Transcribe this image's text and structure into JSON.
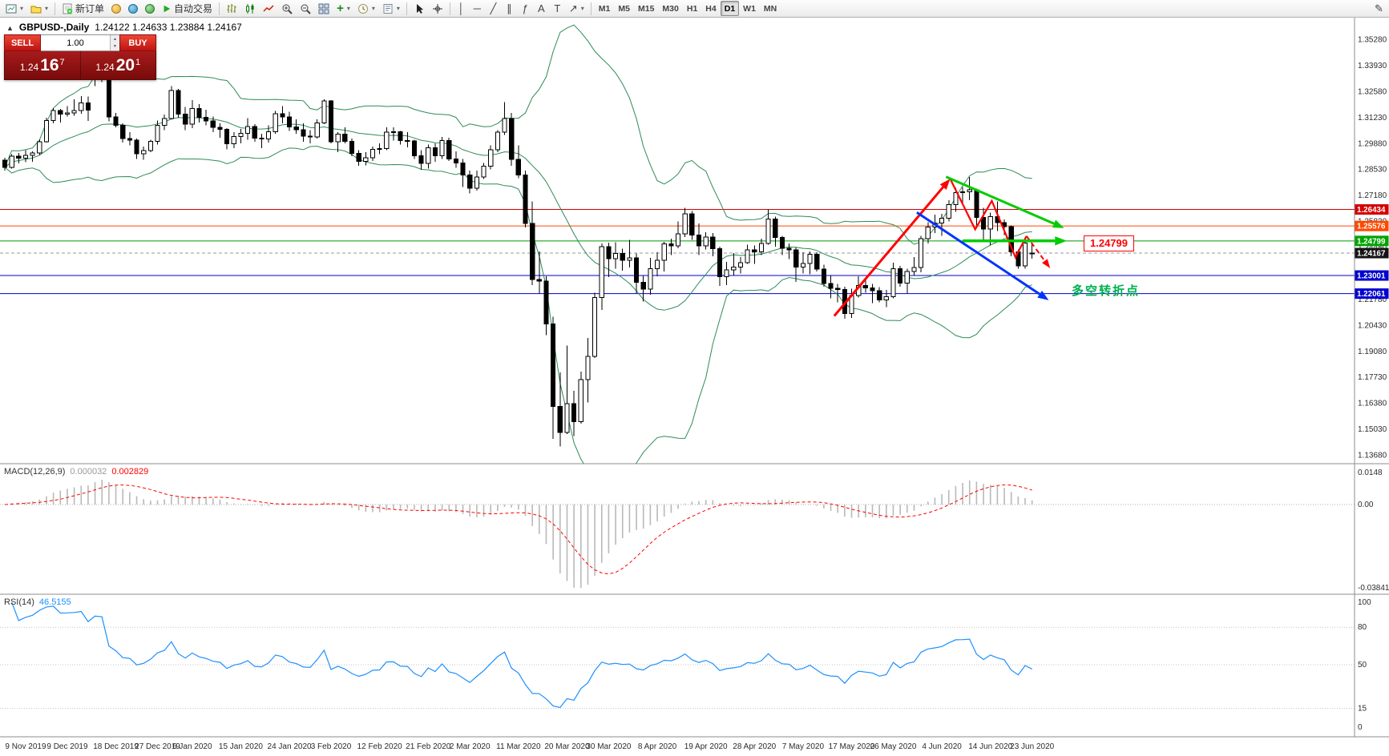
{
  "toolbar": {
    "new_order_label": "新订单",
    "autotrade_label": "自动交易",
    "timeframes": [
      "M1",
      "M5",
      "M15",
      "M30",
      "H1",
      "H4",
      "D1",
      "W1",
      "MN"
    ],
    "active_timeframe": "D1"
  },
  "chart_header": {
    "symbol_period": "GBPUSD-,Daily",
    "ohlc": "1.24122 1.24633 1.23884 1.24167"
  },
  "trade_panel": {
    "sell_label": "SELL",
    "buy_label": "BUY",
    "volume": "1.00",
    "sell_price": {
      "big": "1.24",
      "pips": "16",
      "pt": "7"
    },
    "buy_price": {
      "big": "1.24",
      "pips": "20",
      "pt": "1"
    }
  },
  "annotations": {
    "note_text": "多空转折点",
    "note_color": "#00b050",
    "price_callout": "1.24799",
    "callout_color": "#ff0000"
  },
  "price_scale": {
    "labels": [
      "1.35280",
      "1.33930",
      "1.32580",
      "1.31230",
      "1.29880",
      "1.28530",
      "1.27180",
      "1.25830",
      "1.24480",
      "1.23130",
      "1.21780",
      "1.20430",
      "1.19080",
      "1.17730",
      "1.16380",
      "1.15030",
      "1.13680"
    ],
    "badges": [
      {
        "text": "1.26434",
        "color": "#d40000",
        "price": 1.26434
      },
      {
        "text": "1.25576",
        "color": "#ff4800",
        "price": 1.25576
      },
      {
        "text": "1.24799",
        "color": "#00a400",
        "price": 1.24799
      },
      {
        "text": "1.24167",
        "color": "#141414",
        "price": 1.24167
      },
      {
        "text": "1.23001",
        "color": "#0000d0",
        "price": 1.23001
      },
      {
        "text": "1.22061",
        "color": "#0000d0",
        "price": 1.22061
      }
    ]
  },
  "chart_data": {
    "type": "candlestick",
    "symbol": "GBPUSD-",
    "period": "Daily",
    "ylim": [
      1.1368,
      1.3528
    ],
    "candle_up_color": "#ffffff",
    "candle_down_color": "#000000",
    "candle_border": "#000000",
    "bollinger": {
      "period": 20,
      "deviation": 2,
      "color": "#2e8b57"
    },
    "hlines": [
      {
        "price": 1.26434,
        "color": "#d40000",
        "style": "solid"
      },
      {
        "price": 1.25576,
        "color": "#ff4800",
        "style": "solid"
      },
      {
        "price": 1.24799,
        "color": "#009600",
        "style": "solid"
      },
      {
        "price": 1.24167,
        "color": "#999999",
        "style": "dash"
      },
      {
        "price": 1.23001,
        "color": "#0000d0",
        "style": "solid"
      },
      {
        "price": 1.22061,
        "color": "#0000d0",
        "style": "solid"
      }
    ],
    "date_labels": [
      {
        "i": 3,
        "t": "9 Nov 2019"
      },
      {
        "i": 9,
        "t": "9 Dec 2019"
      },
      {
        "i": 16,
        "t": "18 Dec 2019"
      },
      {
        "i": 22,
        "t": "27 Dec 2019"
      },
      {
        "i": 27,
        "t": "6 Jan 2020"
      },
      {
        "i": 34,
        "t": "15 Jan 2020"
      },
      {
        "i": 41,
        "t": "24 Jan 2020"
      },
      {
        "i": 47,
        "t": "3 Feb 2020"
      },
      {
        "i": 54,
        "t": "12 Feb 2020"
      },
      {
        "i": 61,
        "t": "21 Feb 2020"
      },
      {
        "i": 67,
        "t": "2 Mar 2020"
      },
      {
        "i": 74,
        "t": "11 Mar 2020"
      },
      {
        "i": 81,
        "t": "20 Mar 2020"
      },
      {
        "i": 87,
        "t": "30 Mar 2020"
      },
      {
        "i": 94,
        "t": "8 Apr 2020"
      },
      {
        "i": 101,
        "t": "19 Apr 2020"
      },
      {
        "i": 108,
        "t": "28 Apr 2020"
      },
      {
        "i": 115,
        "t": "7 May 2020"
      },
      {
        "i": 122,
        "t": "17 May 2020"
      },
      {
        "i": 128,
        "t": "26 May 2020"
      },
      {
        "i": 135,
        "t": "4 Jun 2020"
      },
      {
        "i": 142,
        "t": "14 Jun 2020"
      },
      {
        "i": 148,
        "t": "23 Jun 2020"
      }
    ],
    "candles": [
      [
        1.29,
        1.2912,
        1.2845,
        1.2862
      ],
      [
        1.2862,
        1.2931,
        1.2855,
        1.292
      ],
      [
        1.292,
        1.2937,
        1.2882,
        1.291
      ],
      [
        1.291,
        1.2952,
        1.289,
        1.2925
      ],
      [
        1.2925,
        1.2946,
        1.2892,
        1.2938
      ],
      [
        1.2938,
        1.3006,
        1.2926,
        1.2996
      ],
      [
        1.2996,
        1.3121,
        1.2991,
        1.3105
      ],
      [
        1.3105,
        1.3171,
        1.3091,
        1.3158
      ],
      [
        1.3158,
        1.3166,
        1.3096,
        1.3139
      ],
      [
        1.3139,
        1.3181,
        1.3126,
        1.3145
      ],
      [
        1.3145,
        1.3216,
        1.3131,
        1.3157
      ],
      [
        1.3157,
        1.3232,
        1.3141,
        1.3198
      ],
      [
        1.3198,
        1.3231,
        1.3103,
        1.316
      ],
      [
        1.3424,
        1.3514,
        1.3285,
        1.3332
      ],
      [
        1.3332,
        1.3423,
        1.3306,
        1.3328
      ],
      [
        1.3328,
        1.3341,
        1.3101,
        1.3124
      ],
      [
        1.3124,
        1.3146,
        1.3071,
        1.308
      ],
      [
        1.308,
        1.3091,
        1.2991,
        1.3011
      ],
      [
        1.3011,
        1.3046,
        1.2976,
        1.3003
      ],
      [
        1.3003,
        1.3011,
        1.2906,
        1.2933
      ],
      [
        1.2933,
        1.2971,
        1.2901,
        1.295
      ],
      [
        1.295,
        1.3006,
        1.2941,
        1.2997
      ],
      [
        1.2997,
        1.3106,
        1.2981,
        1.308
      ],
      [
        1.308,
        1.3136,
        1.3056,
        1.3115
      ],
      [
        1.3115,
        1.3284,
        1.3111,
        1.3262
      ],
      [
        1.3262,
        1.3271,
        1.3121,
        1.3139
      ],
      [
        1.3139,
        1.3176,
        1.3056,
        1.3087
      ],
      [
        1.3087,
        1.3211,
        1.3066,
        1.3167
      ],
      [
        1.3167,
        1.3191,
        1.3096,
        1.3122
      ],
      [
        1.3122,
        1.3161,
        1.3081,
        1.3103
      ],
      [
        1.3103,
        1.3126,
        1.3046,
        1.3071
      ],
      [
        1.3071,
        1.3091,
        1.3016,
        1.3059
      ],
      [
        1.3059,
        1.3066,
        1.2956,
        1.2985
      ],
      [
        1.2985,
        1.3046,
        1.2961,
        1.3023
      ],
      [
        1.3023,
        1.3061,
        1.2986,
        1.304
      ],
      [
        1.304,
        1.3119,
        1.3006,
        1.3075
      ],
      [
        1.3075,
        1.3086,
        1.2996,
        1.3013
      ],
      [
        1.3013,
        1.3036,
        1.2961,
        1.3009
      ],
      [
        1.3009,
        1.3081,
        1.2991,
        1.3048
      ],
      [
        1.3048,
        1.3156,
        1.3036,
        1.314
      ],
      [
        1.314,
        1.3181,
        1.3091,
        1.3125
      ],
      [
        1.3125,
        1.3151,
        1.3051,
        1.3073
      ],
      [
        1.3073,
        1.3111,
        1.3036,
        1.3058
      ],
      [
        1.3058,
        1.3091,
        1.2996,
        1.3024
      ],
      [
        1.3024,
        1.3056,
        1.2986,
        1.302
      ],
      [
        1.302,
        1.3111,
        1.3011,
        1.3093
      ],
      [
        1.3093,
        1.3216,
        1.3086,
        1.3207
      ],
      [
        1.3207,
        1.3211,
        1.2986,
        1.2995
      ],
      [
        1.2995,
        1.3046,
        1.2941,
        1.3034
      ],
      [
        1.3034,
        1.3071,
        1.2986,
        1.2997
      ],
      [
        1.2997,
        1.3011,
        1.2921,
        1.2934
      ],
      [
        1.2934,
        1.2951,
        1.2871,
        1.2893
      ],
      [
        1.2893,
        1.2941,
        1.2873,
        1.2913
      ],
      [
        1.2913,
        1.2971,
        1.2896,
        1.2955
      ],
      [
        1.2955,
        1.2986,
        1.2931,
        1.2959
      ],
      [
        1.2959,
        1.3071,
        1.2951,
        1.3046
      ],
      [
        1.3046,
        1.3071,
        1.3001,
        1.3047
      ],
      [
        1.3047,
        1.3051,
        1.2981,
        1.3001
      ],
      [
        1.3001,
        1.3046,
        1.2966,
        1.2999
      ],
      [
        1.2999,
        1.3006,
        1.2906,
        1.2922
      ],
      [
        1.2922,
        1.2951,
        1.2849,
        1.2883
      ],
      [
        1.2883,
        1.2981,
        1.2856,
        1.2964
      ],
      [
        1.2964,
        1.2986,
        1.2891,
        1.2923
      ],
      [
        1.2923,
        1.3021,
        1.2906,
        1.3001
      ],
      [
        1.3001,
        1.3016,
        1.2896,
        1.2906
      ],
      [
        1.2906,
        1.2946,
        1.2859,
        1.2884
      ],
      [
        1.2884,
        1.2906,
        1.2761,
        1.2823
      ],
      [
        1.2823,
        1.2846,
        1.2726,
        1.2753
      ],
      [
        1.2753,
        1.2846,
        1.2741,
        1.2812
      ],
      [
        1.2812,
        1.2886,
        1.2801,
        1.2869
      ],
      [
        1.2869,
        1.2976,
        1.2851,
        1.2953
      ],
      [
        1.2953,
        1.3056,
        1.2941,
        1.3045
      ],
      [
        1.3045,
        1.3201,
        1.3031,
        1.3115
      ],
      [
        1.3115,
        1.3146,
        1.2871,
        1.2903
      ],
      [
        1.2903,
        1.2976,
        1.2806,
        1.2822
      ],
      [
        1.2822,
        1.2846,
        1.2551,
        1.257
      ],
      [
        1.257,
        1.2686,
        1.2251,
        1.228
      ],
      [
        1.228,
        1.2426,
        1.2206,
        1.2272
      ],
      [
        1.2272,
        1.2296,
        1.1991,
        1.2049
      ],
      [
        1.2049,
        1.2086,
        1.1451,
        1.162
      ],
      [
        1.162,
        1.1796,
        1.1412,
        1.1485
      ],
      [
        1.1485,
        1.1936,
        1.1476,
        1.1634
      ],
      [
        1.1634,
        1.1701,
        1.1466,
        1.154
      ],
      [
        1.154,
        1.1801,
        1.1531,
        1.176
      ],
      [
        1.176,
        1.1976,
        1.1641,
        1.188
      ],
      [
        1.188,
        1.2211,
        1.1871,
        1.2185
      ],
      [
        1.2185,
        1.2466,
        1.2121,
        1.245
      ],
      [
        1.245,
        1.2471,
        1.2291,
        1.2388
      ],
      [
        1.2388,
        1.2473,
        1.2336,
        1.2415
      ],
      [
        1.2415,
        1.2439,
        1.2326,
        1.238
      ],
      [
        1.238,
        1.2486,
        1.2341,
        1.2392
      ],
      [
        1.2392,
        1.2414,
        1.2206,
        1.2265
      ],
      [
        1.2265,
        1.2301,
        1.2164,
        1.223
      ],
      [
        1.223,
        1.2391,
        1.2201,
        1.2335
      ],
      [
        1.2335,
        1.2421,
        1.2296,
        1.238
      ],
      [
        1.238,
        1.2476,
        1.2321,
        1.2465
      ],
      [
        1.2465,
        1.2491,
        1.2406,
        1.2455
      ],
      [
        1.2455,
        1.2581,
        1.2441,
        1.2516
      ],
      [
        1.2516,
        1.2651,
        1.2501,
        1.262
      ],
      [
        1.262,
        1.2636,
        1.2486,
        1.251
      ],
      [
        1.251,
        1.2571,
        1.2406,
        1.2455
      ],
      [
        1.2455,
        1.2526,
        1.2436,
        1.25
      ],
      [
        1.25,
        1.2521,
        1.2401,
        1.244
      ],
      [
        1.244,
        1.2451,
        1.2246,
        1.2295
      ],
      [
        1.2295,
        1.2371,
        1.2251,
        1.233
      ],
      [
        1.233,
        1.2416,
        1.2301,
        1.2344
      ],
      [
        1.2344,
        1.2396,
        1.2311,
        1.2367
      ],
      [
        1.2367,
        1.2461,
        1.2361,
        1.2434
      ],
      [
        1.2434,
        1.2456,
        1.2361,
        1.2422
      ],
      [
        1.2422,
        1.2491,
        1.2406,
        1.2467
      ],
      [
        1.2467,
        1.2644,
        1.2461,
        1.2594
      ],
      [
        1.2594,
        1.2606,
        1.2451,
        1.2498
      ],
      [
        1.2498,
        1.2506,
        1.2406,
        1.2442
      ],
      [
        1.2442,
        1.2466,
        1.2386,
        1.2434
      ],
      [
        1.2434,
        1.2446,
        1.2266,
        1.2343
      ],
      [
        1.2343,
        1.2421,
        1.2311,
        1.2363
      ],
      [
        1.2363,
        1.2426,
        1.2306,
        1.241
      ],
      [
        1.241,
        1.2421,
        1.2321,
        1.2334
      ],
      [
        1.2334,
        1.2356,
        1.2241,
        1.2259
      ],
      [
        1.2259,
        1.2301,
        1.2181,
        1.2234
      ],
      [
        1.2234,
        1.2256,
        1.2161,
        1.2228
      ],
      [
        1.2228,
        1.2241,
        1.2076,
        1.2103
      ],
      [
        1.2103,
        1.2231,
        1.2079,
        1.2196
      ],
      [
        1.2196,
        1.2296,
        1.2186,
        1.2249
      ],
      [
        1.2249,
        1.2286,
        1.2211,
        1.2235
      ],
      [
        1.2235,
        1.2256,
        1.2156,
        1.2221
      ],
      [
        1.2221,
        1.2239,
        1.2161,
        1.2173
      ],
      [
        1.2173,
        1.2226,
        1.2136,
        1.219
      ],
      [
        1.219,
        1.2366,
        1.2181,
        1.2336
      ],
      [
        1.2336,
        1.2351,
        1.2243,
        1.2261
      ],
      [
        1.2261,
        1.2336,
        1.2206,
        1.2321
      ],
      [
        1.2321,
        1.2396,
        1.2301,
        1.2342
      ],
      [
        1.2342,
        1.2506,
        1.2316,
        1.2492
      ],
      [
        1.2492,
        1.2576,
        1.2466,
        1.2553
      ],
      [
        1.2553,
        1.2616,
        1.2521,
        1.2573
      ],
      [
        1.2573,
        1.2621,
        1.2506,
        1.2598
      ],
      [
        1.2598,
        1.2691,
        1.2581,
        1.2668
      ],
      [
        1.2668,
        1.2756,
        1.2631,
        1.2732
      ],
      [
        1.2732,
        1.2761,
        1.2671,
        1.2735
      ],
      [
        1.2735,
        1.2813,
        1.2691,
        1.2745
      ],
      [
        1.2745,
        1.2751,
        1.2546,
        1.2602
      ],
      [
        1.2602,
        1.2651,
        1.2476,
        1.2541
      ],
      [
        1.2541,
        1.2626,
        1.2456,
        1.2607
      ],
      [
        1.2607,
        1.2686,
        1.2531,
        1.2575
      ],
      [
        1.2575,
        1.2591,
        1.2511,
        1.2554
      ],
      [
        1.2554,
        1.2561,
        1.2401,
        1.2423
      ],
      [
        1.2423,
        1.2436,
        1.2336,
        1.235
      ],
      [
        1.235,
        1.2476,
        1.2336,
        1.2468
      ],
      [
        1.24122,
        1.24633,
        1.23884,
        1.24167
      ]
    ],
    "drawings": {
      "red_trend_arrow": {
        "from": [
          119.5,
          1.209
        ],
        "to": [
          136.2,
          1.2803
        ],
        "color": "#ff0000",
        "width": 3
      },
      "red_zigzag": {
        "points": [
          [
            136.2,
            1.2803
          ],
          [
            139.8,
            1.254
          ],
          [
            142.2,
            1.2688
          ],
          [
            145.6,
            1.2395
          ],
          [
            147.2,
            1.2505
          ]
        ],
        "color": "#ff0000",
        "width": 2.2
      },
      "red_dash_arrow": {
        "from": [
          147.2,
          1.2505
        ],
        "to": [
          150.6,
          1.2338
        ],
        "color": "#ff0000",
        "width": 2,
        "dash": "6,4"
      },
      "green_trendline": {
        "from": [
          135.6,
          1.2813
        ],
        "to": [
          152.6,
          1.2547
        ],
        "color": "#00cc00",
        "width": 3
      },
      "green_hline": {
        "from": [
          138,
          1.248
        ],
        "to": [
          153,
          1.248
        ],
        "color": "#00cc00",
        "width": 3.5
      },
      "blue_arrow": {
        "from": [
          131.4,
          1.2628
        ],
        "to": [
          150.4,
          1.2172
        ],
        "color": "#0033ff",
        "width": 3
      }
    }
  },
  "macd_panel": {
    "title": "MACD(12,26,9)",
    "value_main": "0.000032",
    "value_signal": "0.002829",
    "range": [
      -0.038415,
      0.0148
    ],
    "scale_labels": {
      "top": "0.0148",
      "zero": "0.00",
      "bottom": "-0.038415"
    },
    "histogram_color": "#b9b9b9",
    "signal_color": "#ff0000"
  },
  "rsi_panel": {
    "title": "RSI(14)",
    "value": "46.5155",
    "period": 14,
    "color": "#1e90ff",
    "scale_labels": [
      {
        "v": 100,
        "t": "100"
      },
      {
        "v": 80,
        "t": "80"
      },
      {
        "v": 50,
        "t": "50"
      },
      {
        "v": 15,
        "t": "15"
      },
      {
        "v": 0,
        "t": "0"
      }
    ],
    "levels": [
      80,
      50,
      15
    ]
  }
}
